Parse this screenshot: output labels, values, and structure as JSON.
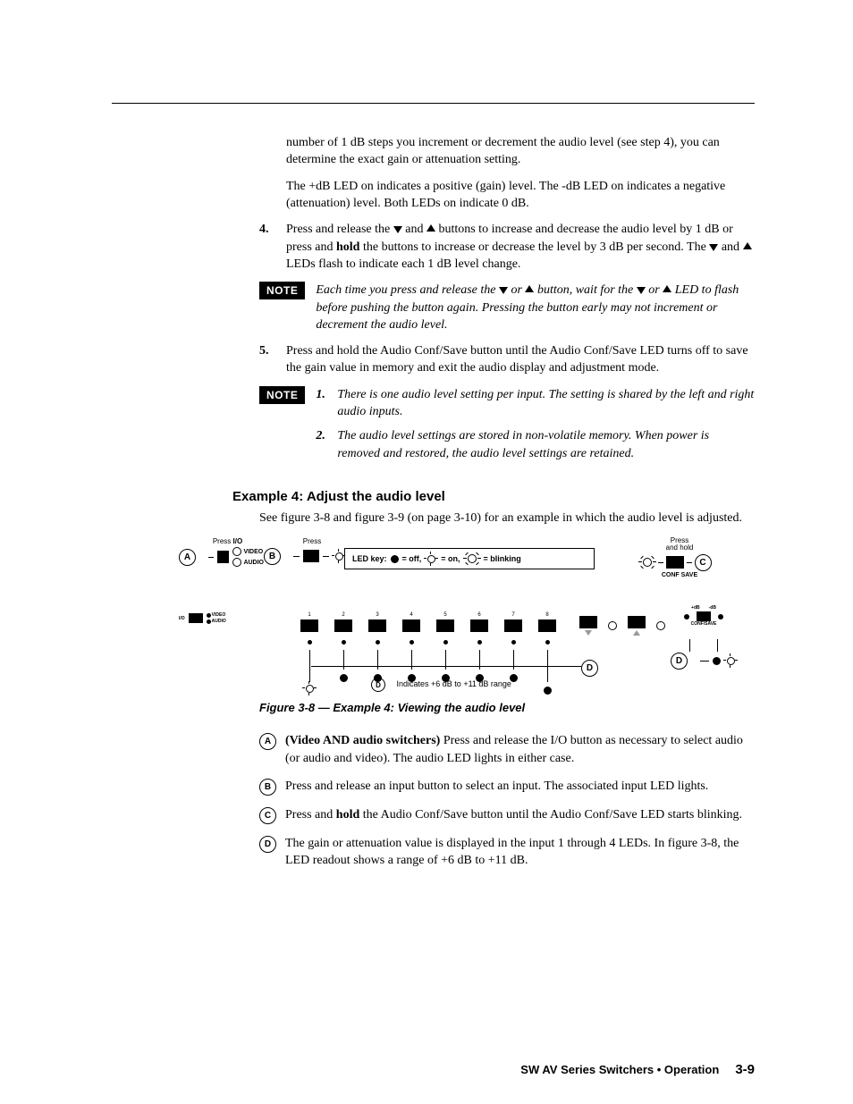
{
  "top_para1": "number of 1 dB steps you increment or decrement the audio level (see step 4), you can determine the exact gain or attenuation setting.",
  "top_para2": "The +dB LED on indicates a positive (gain) level.  The -dB LED on indicates a negative (attenuation) level.  Both LEDs on indicate 0 dB.",
  "step4_num": "4.",
  "step4_a": "Press and release the ",
  "step4_b": " and ",
  "step4_c": " buttons to increase and decrease the audio level by 1 dB or press and ",
  "step4_hold": "hold",
  "step4_d": " the buttons to increase or decrease the level by 3 dB per second.  The ",
  "step4_e": " and ",
  "step4_f": " LEDs flash to indicate each 1 dB level change.",
  "note_label": "NOTE",
  "note1_a": "Each time you press and release the ",
  "note1_b": " or ",
  "note1_c": " button, wait for the ",
  "note1_d": " or ",
  "note1_e": " LED to flash before pushing the button again.  Pressing the button early may not increment or decrement the audio level.",
  "step5_num": "5.",
  "step5": "Press and hold the Audio Conf/Save button until the Audio Conf/Save LED turns off to save the gain value in memory and exit the audio display and adjustment mode.",
  "note2_1_num": "1.",
  "note2_1": "There is one audio level setting per input.  The setting is shared by the left and right audio inputs.",
  "note2_2_num": "2.",
  "note2_2": "The audio level settings are stored in non-volatile memory.  When power is removed and restored, the audio level settings are retained.",
  "example_heading": "Example 4:  Adjust the audio level",
  "example_para": "See figure 3-8 and figure 3-9 (on page 3-10) for an example in which the audio level is adjusted.",
  "fig": {
    "pressA": "Press ",
    "pressA_bold": "I/O",
    "video": "VIDEO",
    "audio": "AUDIO",
    "pressB": "Press",
    "ledkey": "LED key:",
    "off": "= off,",
    "on": "= on,",
    "blinking": "= blinking",
    "pressC": "Press\nand hold",
    "confsave": "CONF SAVE",
    "confsave2": "CONF/SAVE",
    "plusdb": "+dB",
    "minusdb": "-dB",
    "inputs_video": "VIDEO",
    "inputs_audio": "AUDIO",
    "io_label": "I/O",
    "input_nums": [
      "1",
      "2",
      "3",
      "4",
      "5",
      "6",
      "7",
      "8"
    ],
    "d_range": "Indicates +6 dB to +11 dB range"
  },
  "fig_caption": "Figure 3-8 — Example 4:  Viewing the audio level",
  "letters": {
    "A_bold": "(Video AND audio switchers)",
    "A": "  Press and release the I/O button as necessary to select audio (or audio and video).  The audio LED lights in either case.",
    "B": "Press and release an input button to select an input.  The associated input LED lights.",
    "C_a": "Press and ",
    "C_hold": "hold",
    "C_b": " the Audio Conf/Save button until the Audio Conf/Save LED starts blinking.",
    "D": "The gain or attenuation value is displayed in the input 1 through 4 LEDs.  In figure 3-8, the LED readout shows a range of +6 dB to +11 dB."
  },
  "footer_title": "SW AV Series Switchers • Operation",
  "footer_page": "3-9"
}
